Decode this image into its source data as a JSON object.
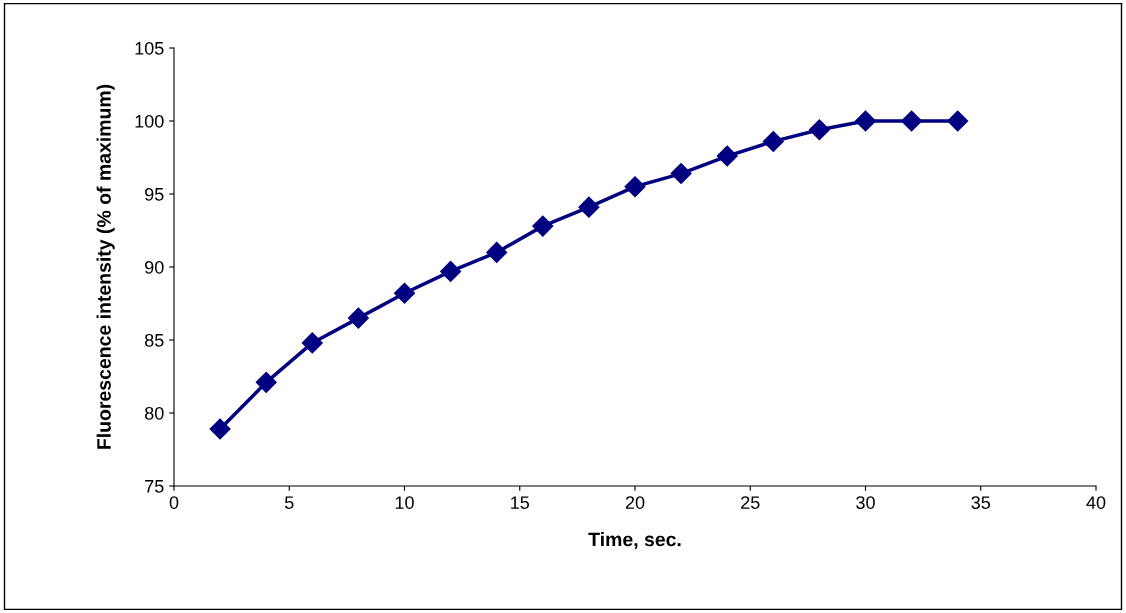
{
  "chart_data": {
    "type": "line",
    "xlabel": "Time, sec.",
    "ylabel": "Fluorescence intensity (% of maximum)",
    "x": [
      2,
      4,
      6,
      8,
      10,
      12,
      14,
      16,
      18,
      20,
      22,
      24,
      26,
      28,
      30,
      32,
      34
    ],
    "series": [
      {
        "color": "#000080",
        "values": [
          78.9,
          82.1,
          84.8,
          86.5,
          88.2,
          89.7,
          91.0,
          92.8,
          94.1,
          95.5,
          96.4,
          97.6,
          98.6,
          99.4,
          100.0,
          100.0,
          100.0
        ]
      }
    ],
    "xlim": [
      0,
      40
    ],
    "xticks": [
      0,
      5,
      10,
      15,
      20,
      25,
      30,
      35,
      40
    ],
    "ylim": [
      75,
      105
    ],
    "yticks": [
      75,
      80,
      85,
      90,
      95,
      100,
      105
    ],
    "grid": false,
    "marker": "diamond",
    "line_style": "solid"
  }
}
